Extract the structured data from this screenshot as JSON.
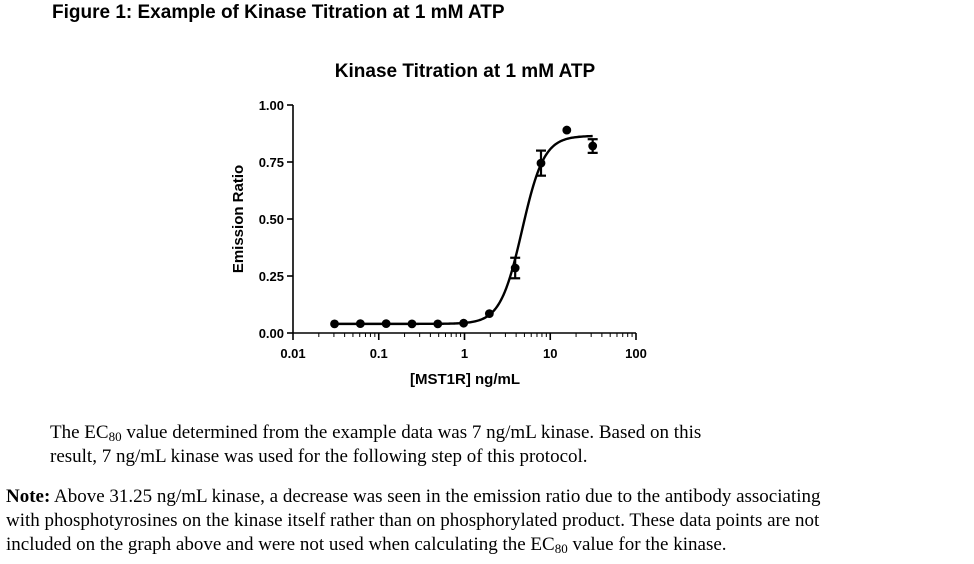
{
  "figure_title": "Figure 1: Example of Kinase Titration at 1 mM ATP",
  "chart_data": {
    "type": "scatter",
    "title": "Kinase Titration at 1 mM ATP",
    "xlabel": "[MST1R] ng/mL",
    "ylabel": "Emission Ratio",
    "x_scale": "log",
    "xlim": [
      0.01,
      100
    ],
    "ylim": [
      0,
      1
    ],
    "x_ticks": [
      {
        "value": 0.01,
        "label": "0.01"
      },
      {
        "value": 0.1,
        "label": "0.1"
      },
      {
        "value": 1,
        "label": "1"
      },
      {
        "value": 10,
        "label": "10"
      },
      {
        "value": 100,
        "label": "100"
      }
    ],
    "y_ticks": [
      {
        "value": 0,
        "label": "0.00"
      },
      {
        "value": 0.25,
        "label": "0.25"
      },
      {
        "value": 0.5,
        "label": "0.50"
      },
      {
        "value": 0.75,
        "label": "0.75"
      },
      {
        "value": 1,
        "label": "1.00"
      }
    ],
    "grid": false,
    "legend": "none",
    "points": [
      {
        "x": 0.0305,
        "y": 0.04,
        "err": 0
      },
      {
        "x": 0.061,
        "y": 0.041,
        "err": 0
      },
      {
        "x": 0.122,
        "y": 0.041,
        "err": 0
      },
      {
        "x": 0.244,
        "y": 0.04,
        "err": 0
      },
      {
        "x": 0.488,
        "y": 0.04,
        "err": 0
      },
      {
        "x": 0.977,
        "y": 0.043,
        "err": 0
      },
      {
        "x": 1.95,
        "y": 0.085,
        "err": 0
      },
      {
        "x": 3.9,
        "y": 0.285,
        "err": 0.045
      },
      {
        "x": 7.8,
        "y": 0.745,
        "err": 0.055
      },
      {
        "x": 15.6,
        "y": 0.89,
        "err": 0
      },
      {
        "x": 31.25,
        "y": 0.82,
        "err": 0.03
      }
    ],
    "fit": {
      "model": "sigmoidal dose-response",
      "bottom": 0.04,
      "top": 0.865,
      "ec50": 4.7,
      "hill": 3.4,
      "x_range": [
        0.0305,
        31.25
      ]
    }
  },
  "paragraph1": {
    "line1_pre": "The EC",
    "line1_sub": "80",
    "line1_post": " value determined from the example data was 7 ng/mL kinase.  Based on this",
    "line2": "result, 7 ng/mL kinase was used for the following step of this protocol."
  },
  "note": {
    "label": "Note:",
    "line1": " Above 31.25 ng/mL kinase, a decrease was seen in the emission ratio due to the antibody associating",
    "line2": "with phosphotyrosines on the kinase itself rather than on phosphorylated product. These data points are not",
    "line3_pre": "included on the graph above and were not used when calculating the EC",
    "line3_sub": "80",
    "line3_post": " value for the kinase."
  }
}
